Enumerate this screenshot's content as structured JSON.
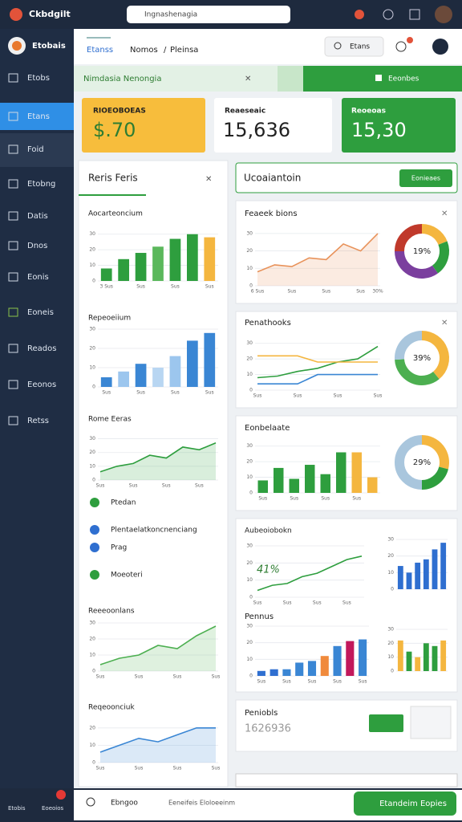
{
  "browser": {
    "title": "Ckbdgilt",
    "url": "Ingnashenagia"
  },
  "sidebar": {
    "brand": "Etobais",
    "items": [
      "Etobs",
      "Etans",
      "Foid",
      "Etobng",
      "Datis",
      "Dnos",
      "Eonis",
      "Eoneis",
      "Reados",
      "Eeonos",
      "Retss"
    ]
  },
  "header": {
    "tabs": [
      "Etanss",
      "Nomos",
      "Pleinsa"
    ],
    "search": "Etans"
  },
  "banner": {
    "title": "Nimdasia Nenongia",
    "button": "Eeonbes"
  },
  "stat_cards": [
    {
      "label": "RIOEOBOEAS",
      "value": "$.70"
    },
    {
      "label": "Reaeseaic",
      "value": "15,636"
    },
    {
      "label": "Reoeoas",
      "value": "15,30"
    }
  ],
  "left_panel": {
    "title": "Reris Feris",
    "charts": [
      {
        "title": "Aocarteoncium",
        "type": "bar",
        "categories": [
          "3 Sus",
          null,
          "Sus",
          null,
          "Sus",
          null,
          "Sus"
        ],
        "values": [
          8,
          14,
          18,
          22,
          27,
          30,
          28
        ],
        "colors": [
          "#2e9e3e",
          "#2e9e3e",
          "#2e9e3e",
          "#5bb85c",
          "#2e9e3e",
          "#2e9e3e",
          "#f4b63f"
        ],
        "ylim": [
          0,
          35
        ],
        "yticks": [
          0,
          10,
          20,
          30
        ]
      },
      {
        "title": "Repeoeiium",
        "type": "bar",
        "categories": [
          "Sus",
          null,
          "Sus",
          null,
          "Sus",
          null,
          "Sus"
        ],
        "values": [
          5,
          8,
          12,
          10,
          16,
          24,
          28
        ],
        "colors": [
          "#3a86d4",
          "#9cc6ee",
          "#3a86d4",
          "#b8d6f2",
          "#9cc6ee",
          "#3a86d4",
          "#3a86d4"
        ],
        "ylim": [
          0,
          30
        ],
        "yticks": [
          0,
          10,
          20,
          30
        ]
      },
      {
        "title": "Rome Eeras",
        "type": "area",
        "categories": [
          "Sus",
          null,
          "Sus",
          null,
          "Sus",
          null,
          "Sus",
          null
        ],
        "values": [
          6,
          10,
          12,
          18,
          16,
          24,
          22,
          27
        ],
        "color": "#2e9e3e",
        "ylim": [
          0,
          35
        ],
        "yticks": [
          0,
          10,
          20,
          30
        ]
      },
      {
        "title": "Reeeoonlans",
        "type": "area",
        "categories": [
          "Sus",
          null,
          "Sus",
          null,
          "Sus",
          null,
          "Sus"
        ],
        "values": [
          4,
          8,
          10,
          16,
          14,
          22,
          28
        ],
        "color": "#4caf50",
        "ylim": [
          0,
          30
        ],
        "yticks": [
          0,
          10,
          20,
          30
        ]
      },
      {
        "title": "Reqeoonciuk",
        "type": "area",
        "categories": [
          "Sus",
          null,
          "Sus",
          null,
          "Sus",
          null,
          "Sus"
        ],
        "values": [
          6,
          10,
          14,
          12,
          16,
          20,
          20
        ],
        "color": "#3a86d4",
        "ylim": [
          0,
          25
        ],
        "yticks": [
          0,
          10,
          20
        ]
      }
    ],
    "list": [
      "Ptedan",
      "Plentaelatkoncnenciang",
      "Prag",
      "Moeoteri"
    ]
  },
  "right_panel": {
    "title": "Ucoaiantoin",
    "button": "Eonieaes",
    "cards": [
      {
        "title": "Feaeek bions",
        "chart": {
          "type": "area",
          "categories": [
            "6 Sus",
            null,
            "Sus",
            null,
            "Sus",
            null,
            "Sus",
            "30%"
          ],
          "values": [
            8,
            12,
            11,
            16,
            15,
            24,
            20,
            30
          ],
          "color": "#e8925a",
          "ylim": [
            0,
            35
          ],
          "yticks": [
            0,
            10,
            20,
            30
          ]
        },
        "donut": {
          "type": "donut",
          "values": [
            19,
            21,
            35,
            25
          ],
          "colors": [
            "#f4b63f",
            "#2e9e3e",
            "#7b3f9e",
            "#c0392b"
          ],
          "center_label": "19%"
        }
      },
      {
        "title": "Penathooks",
        "chart": {
          "type": "line",
          "categories": [
            "Sus",
            null,
            "Sus",
            null,
            "Sus",
            null,
            "Sus"
          ],
          "series": [
            {
              "color": "#2e9e3e",
              "values": [
                8,
                9,
                12,
                14,
                18,
                20,
                28
              ]
            },
            {
              "color": "#f4b63f",
              "values": [
                22,
                22,
                22,
                18,
                18,
                18,
                18
              ]
            },
            {
              "color": "#3a86d4",
              "values": [
                4,
                4,
                4,
                10,
                10,
                10,
                10
              ]
            }
          ],
          "ylim": [
            0,
            35
          ],
          "yticks": [
            0,
            10,
            20,
            30
          ]
        },
        "donut": {
          "type": "donut",
          "values": [
            39,
            35,
            26
          ],
          "colors": [
            "#f4b63f",
            "#4caf50",
            "#a9c6dd"
          ],
          "center_label": "39%"
        }
      },
      {
        "title": "Eonbelaate",
        "chart": {
          "type": "bar",
          "categories": [
            "Sus",
            null,
            "Sus",
            null,
            "Sus",
            null,
            "Sus",
            null
          ],
          "values": [
            8,
            16,
            9,
            18,
            12,
            26,
            26,
            10
          ],
          "colors": [
            "#2e9e3e",
            "#2e9e3e",
            "#2e9e3e",
            "#2e9e3e",
            "#2e9e3e",
            "#2e9e3e",
            "#f4b63f",
            "#f4b63f"
          ],
          "ylim": [
            0,
            35
          ],
          "yticks": [
            0,
            10,
            20,
            30
          ]
        },
        "donut": {
          "type": "donut",
          "values": [
            29,
            21,
            50
          ],
          "colors": [
            "#f4b63f",
            "#2e9e3e",
            "#a9c6dd"
          ],
          "center_label": "29%"
        }
      },
      {
        "title": "Aubeoiobokn",
        "annotation": "41%",
        "chart": {
          "type": "line",
          "categories": [
            "Sus",
            null,
            "Sus",
            null,
            "Sus",
            null,
            "Sus",
            null
          ],
          "values": [
            4,
            7,
            8,
            12,
            14,
            18,
            22,
            24
          ],
          "color": "#2e9e3e",
          "ylim": [
            0,
            30
          ],
          "yticks": [
            0,
            10,
            20,
            30
          ]
        },
        "mini": {
          "type": "bar",
          "values": [
            14,
            10,
            16,
            18,
            24,
            28
          ],
          "color": "#2f6fd0",
          "ylim": [
            0,
            30
          ],
          "yticks": [
            0,
            10,
            20,
            30
          ]
        },
        "subtitle": "Pennus",
        "chart2": {
          "type": "bar",
          "categories": [
            "Sus",
            null,
            "Sus",
            null,
            "Sus",
            null,
            "Sus",
            null,
            "Sus"
          ],
          "values": [
            3,
            4,
            4,
            8,
            9,
            12,
            18,
            21,
            22
          ],
          "colors": [
            "#2f6fd0",
            "#2f6fd0",
            "#3a86d4",
            "#3a86d4",
            "#3a86d4",
            "#f08a3c",
            "#3a86d4",
            "#c2185b",
            "#3a86d4"
          ],
          "ylim": [
            0,
            30
          ],
          "yticks": [
            0,
            10,
            20,
            30
          ]
        },
        "mini2": {
          "type": "bar",
          "values": [
            22,
            14,
            10,
            20,
            18,
            22
          ],
          "colors": [
            "#f4b63f",
            "#2e9e3e",
            "#f4b63f",
            "#2e9e3e",
            "#2e9e3e",
            "#f4b63f"
          ],
          "ylim": [
            0,
            30
          ],
          "yticks": [
            0,
            10,
            20,
            30
          ]
        }
      },
      {
        "title": "Peniobls",
        "value": "1626936"
      }
    ]
  },
  "footer": {
    "left": [
      "Etobis",
      "Eoeoios"
    ],
    "items": [
      "Ebngoo",
      "Eeneifeis Eloloeeinm"
    ],
    "button": "Etandeim Eopies"
  }
}
